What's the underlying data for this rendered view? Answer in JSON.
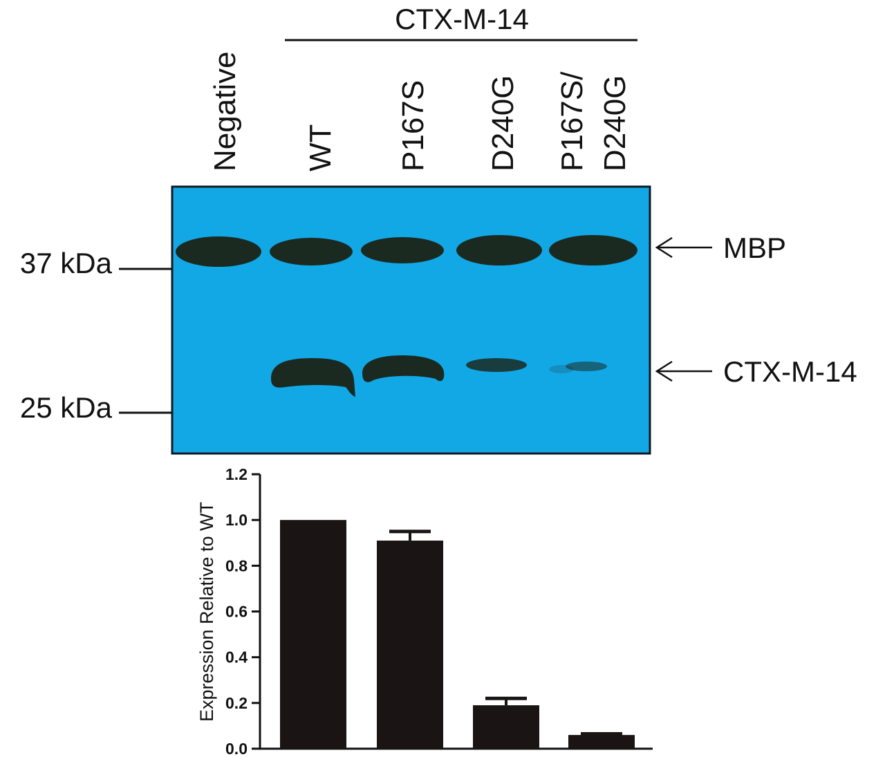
{
  "header": {
    "group_label": "CTX-M-14",
    "lanes": [
      {
        "line1": "Negative",
        "line2": ""
      },
      {
        "line1": "WT",
        "line2": ""
      },
      {
        "line1": "P167S",
        "line2": ""
      },
      {
        "line1": "D240G",
        "line2": ""
      },
      {
        "line1": "P167S/",
        "line2": "D240G"
      }
    ]
  },
  "blot": {
    "background_color": "#12a8e6",
    "band_color": "#1b2a20",
    "markers": [
      {
        "label": "37 kDa"
      },
      {
        "label": "25 kDa"
      }
    ],
    "band_labels": [
      {
        "label": "MBP"
      },
      {
        "label": "CTX-M-14"
      }
    ],
    "mbp_band_intensity": [
      1.0,
      0.85,
      0.85,
      1.0,
      1.0
    ],
    "ctx_band_intensity": [
      0.0,
      1.0,
      0.95,
      0.25,
      0.12
    ]
  },
  "chart_data": {
    "type": "bar",
    "categories": [
      "WT",
      "P167S",
      "D240G",
      "P167S/D240G"
    ],
    "values": [
      1.0,
      0.91,
      0.19,
      0.06
    ],
    "errors": [
      0.0,
      0.04,
      0.03,
      0.005
    ],
    "ylabel": "Expression Relative to WT",
    "ylim": [
      0,
      1.2
    ],
    "yticks": [
      "0.0",
      "0.2",
      "0.4",
      "0.6",
      "0.8",
      "1.0",
      "1.2"
    ],
    "bar_color": "#1a1414",
    "grid": false
  }
}
